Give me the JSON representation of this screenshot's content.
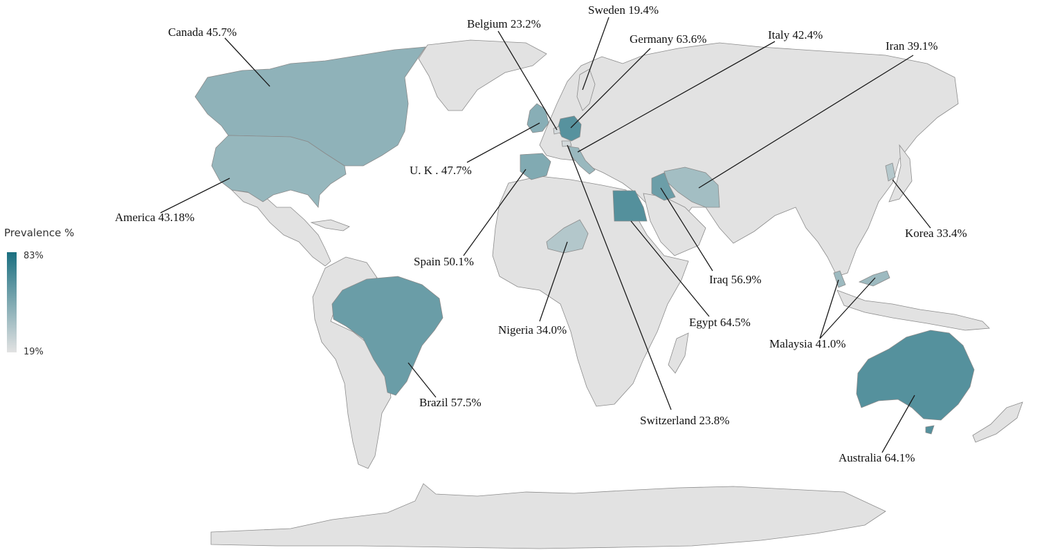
{
  "legend": {
    "title": "Prevalence %",
    "max_label": "83%",
    "min_label": "19%",
    "max_value": 83,
    "min_value": 19,
    "color_high": "#1a6f80",
    "color_low": "#e2e2e2"
  },
  "default_land_color": "#e2e2e2",
  "countries": [
    {
      "id": "canada",
      "name": "Canada",
      "value_label": "45.7%",
      "value": 45.7
    },
    {
      "id": "belgium",
      "name": "Belgium",
      "value_label": "23.2%",
      "value": 23.2
    },
    {
      "id": "sweden",
      "name": "Sweden",
      "value_label": "19.4%",
      "value": 19.4
    },
    {
      "id": "germany",
      "name": "Germany",
      "value_label": "63.6%",
      "value": 63.6
    },
    {
      "id": "italy",
      "name": "Italy",
      "value_label": "42.4%",
      "value": 42.4
    },
    {
      "id": "iran",
      "name": "Iran",
      "value_label": "39.1%",
      "value": 39.1
    },
    {
      "id": "uk",
      "name": "U. K .",
      "value_label": "47.7%",
      "value": 47.7
    },
    {
      "id": "america",
      "name": "America",
      "value_label": "43.18%",
      "value": 43.18
    },
    {
      "id": "korea",
      "name": "Korea",
      "value_label": "33.4%",
      "value": 33.4
    },
    {
      "id": "spain",
      "name": "Spain",
      "value_label": "50.1%",
      "value": 50.1
    },
    {
      "id": "iraq",
      "name": "Iraq",
      "value_label": "56.9%",
      "value": 56.9
    },
    {
      "id": "nigeria",
      "name": "Nigeria",
      "value_label": "34.0%",
      "value": 34.0
    },
    {
      "id": "egypt",
      "name": "Egypt",
      "value_label": "64.5%",
      "value": 64.5
    },
    {
      "id": "malaysia",
      "name": "Malaysia",
      "value_label": "41.0%",
      "value": 41.0
    },
    {
      "id": "brazil",
      "name": "Brazil",
      "value_label": "57.5%",
      "value": 57.5
    },
    {
      "id": "switzerland",
      "name": "Switzerland",
      "value_label": "23.8%",
      "value": 23.8
    },
    {
      "id": "australia",
      "name": "Australia",
      "value_label": "64.1%",
      "value": 64.1
    }
  ]
}
